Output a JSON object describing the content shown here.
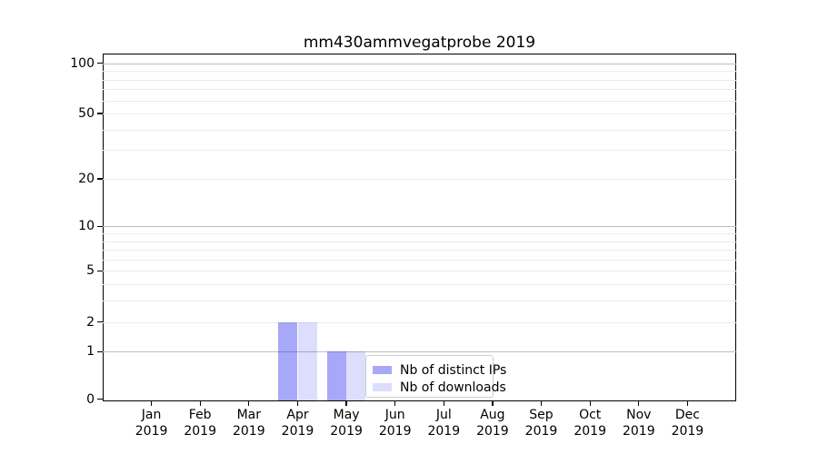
{
  "title": "mm430ammvegatprobe 2019",
  "chart_data": {
    "type": "bar",
    "title": "mm430ammvegatprobe 2019",
    "x_categories": [
      {
        "month": "Jan",
        "year": "2019"
      },
      {
        "month": "Feb",
        "year": "2019"
      },
      {
        "month": "Mar",
        "year": "2019"
      },
      {
        "month": "Apr",
        "year": "2019"
      },
      {
        "month": "May",
        "year": "2019"
      },
      {
        "month": "Jun",
        "year": "2019"
      },
      {
        "month": "Jul",
        "year": "2019"
      },
      {
        "month": "Aug",
        "year": "2019"
      },
      {
        "month": "Sep",
        "year": "2019"
      },
      {
        "month": "Oct",
        "year": "2019"
      },
      {
        "month": "Nov",
        "year": "2019"
      },
      {
        "month": "Dec",
        "year": "2019"
      }
    ],
    "series": [
      {
        "name": "Nb of distinct IPs",
        "values": [
          0,
          0,
          0,
          2,
          1,
          0,
          0,
          0,
          0,
          0,
          0,
          0
        ],
        "color": "#aaaaf2",
        "fill_rgba": "rgba(25,25,240,0.38)"
      },
      {
        "name": "Nb of downloads",
        "values": [
          0,
          0,
          0,
          2,
          1,
          0,
          0,
          0,
          0,
          0,
          0,
          0
        ],
        "color": "#dcdcf9",
        "fill_rgba": "rgba(25,25,240,0.15)"
      }
    ],
    "yscale": "log1p",
    "yticks": [
      0,
      1,
      2,
      5,
      10,
      20,
      50,
      100
    ],
    "y_minor_gridlines": [
      3,
      4,
      6,
      7,
      8,
      9,
      30,
      40,
      60,
      70,
      80,
      90
    ],
    "y_decade_gridlines": [
      1,
      10,
      100
    ],
    "ylim": [
      0,
      115
    ],
    "grid": true,
    "legend": {
      "position": "lower center"
    },
    "colors": {
      "decade_gridline": "#bdbdbd",
      "minor_gridline": "#ebebeb",
      "axis": "#000000"
    }
  }
}
